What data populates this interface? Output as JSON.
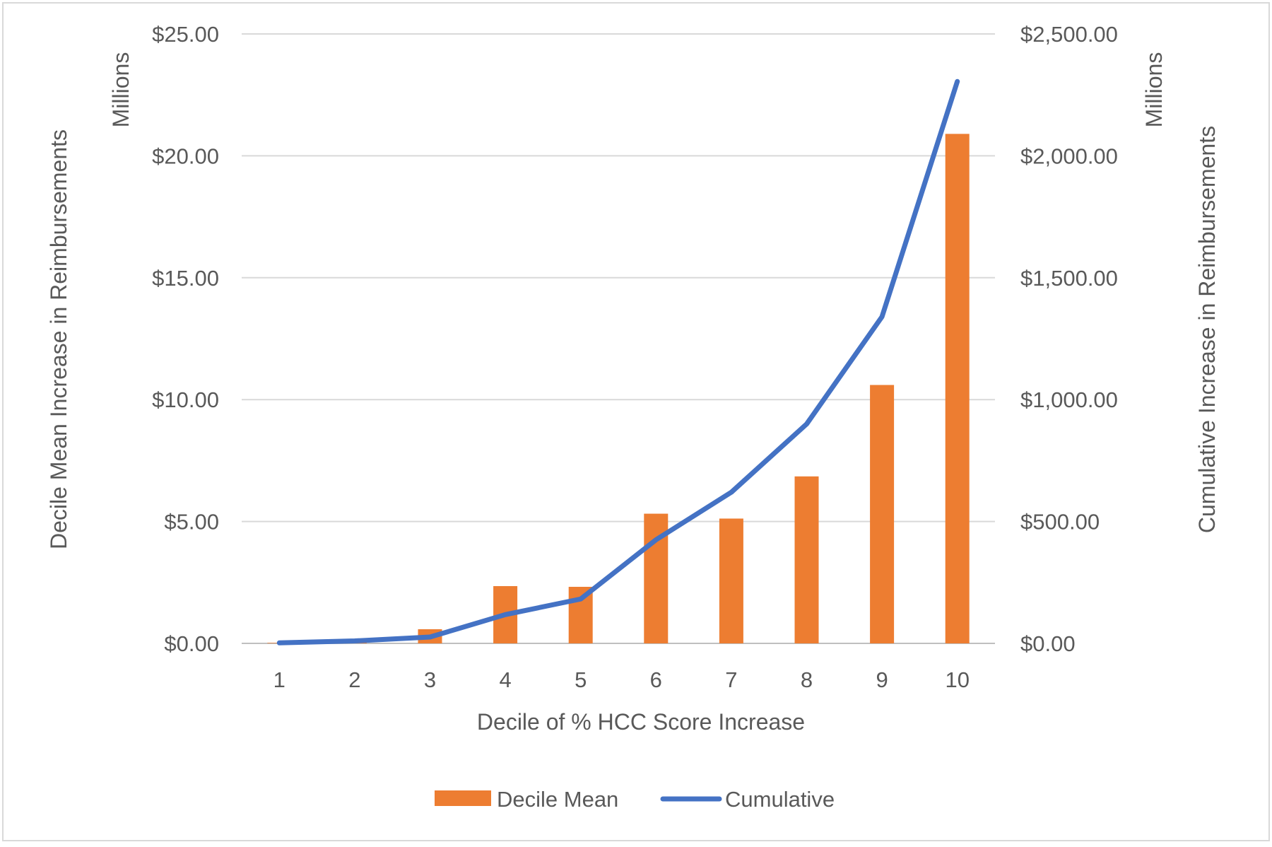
{
  "chart_data": {
    "type": "bar",
    "categories": [
      "1",
      "2",
      "3",
      "4",
      "5",
      "6",
      "7",
      "8",
      "9",
      "10"
    ],
    "series": [
      {
        "name": "Decile Mean",
        "type": "bar",
        "axis": "left",
        "color": "#ED7D31",
        "values": [
          0.02,
          0.08,
          0.58,
          2.35,
          2.32,
          5.32,
          5.12,
          6.85,
          10.6,
          20.9
        ]
      },
      {
        "name": "Cumulative",
        "type": "line",
        "axis": "right",
        "color": "#4472C4",
        "values": [
          2,
          10,
          26,
          118,
          182,
          425,
          620,
          900,
          1340,
          2305
        ]
      }
    ],
    "xlabel": "Decile of % HCC Score Increase",
    "ylabel_left": "Decile Mean Increase in Reimbursements",
    "ylabel_right": "Cumulative Increase in Reimbursements",
    "unit_label_left": "Millions",
    "unit_label_right": "Millions",
    "ylim_left": [
      0,
      25
    ],
    "ylim_right": [
      0,
      2500
    ],
    "yticks_left": [
      "$0.00",
      "$5.00",
      "$10.00",
      "$15.00",
      "$20.00",
      "$25.00"
    ],
    "yticks_right": [
      "$0.00",
      "$500.00",
      "$1,000.00",
      "$1,500.00",
      "$2,000.00",
      "$2,500.00"
    ],
    "grid": true,
    "legend_position": "bottom"
  }
}
